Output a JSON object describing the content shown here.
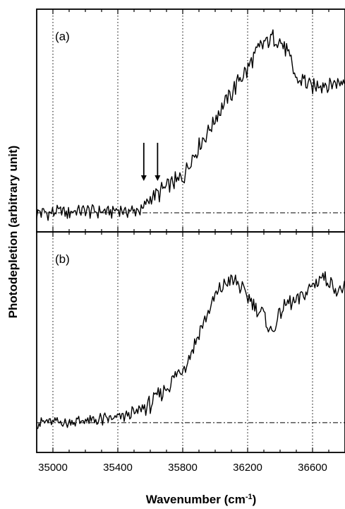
{
  "chart_data": {
    "type": "line",
    "xlabel": "Wavenumber (cm",
    "xlabel_sup": "-1",
    "xlabel_end": ")",
    "ylabel": "Photodepletion (arbitrary unit)",
    "xlim": [
      34900,
      36800
    ],
    "x_ticks": [
      35000,
      35400,
      35800,
      36200,
      36600
    ],
    "x_tick_labels": [
      "35000",
      "35400",
      "35800",
      "36200",
      "36600"
    ],
    "grid_x": [
      35000,
      35400,
      35800,
      36200,
      36600
    ],
    "grid_style": "dotted vertical",
    "baseline_style": "dash-dot",
    "line_color": "#000000",
    "panels": [
      {
        "label": "(a)",
        "ylim": [
          -0.15,
          1.6
        ],
        "baseline": 0,
        "arrows_x": [
          35560,
          35645
        ],
        "series": [
          {
            "x": [
              34900,
              35550,
              35600,
              35650,
              35700,
              35750,
              35800,
              35850,
              35900,
              35950,
              36000,
              36050,
              36100,
              36150,
              36200,
              36250,
              36300,
              36350,
              36400,
              36450,
              36500,
              36550,
              36600,
              36650,
              36700,
              36750,
              36800
            ],
            "y": [
              0,
              0.02,
              0.12,
              0.15,
              0.2,
              0.24,
              0.28,
              0.42,
              0.53,
              0.63,
              0.74,
              0.85,
              0.93,
              1.05,
              1.12,
              1.25,
              1.33,
              1.37,
              1.35,
              1.25,
              1.04,
              1.04,
              0.98,
              1.02,
              1.0,
              1.03,
              1.04
            ]
          }
        ]
      },
      {
        "label": "(b)",
        "ylim": [
          -0.25,
          1.6
        ],
        "baseline": 0,
        "arrows_x": [],
        "series": [
          {
            "x": [
              34900,
              35200,
              35400,
              35500,
              35600,
              35700,
              35800,
              35850,
              35900,
              35950,
              36000,
              36050,
              36100,
              36150,
              36200,
              36250,
              36300,
              36350,
              36400,
              36450,
              36500,
              36550,
              36600,
              36650,
              36700,
              36750,
              36800
            ],
            "y": [
              0,
              0.01,
              0.04,
              0.08,
              0.15,
              0.3,
              0.45,
              0.58,
              0.75,
              0.9,
              1.05,
              1.15,
              1.2,
              1.15,
              1.05,
              0.98,
              0.9,
              0.75,
              0.92,
              1.0,
              1.02,
              1.08,
              1.15,
              1.22,
              1.2,
              1.1,
              1.12
            ]
          }
        ]
      }
    ]
  }
}
